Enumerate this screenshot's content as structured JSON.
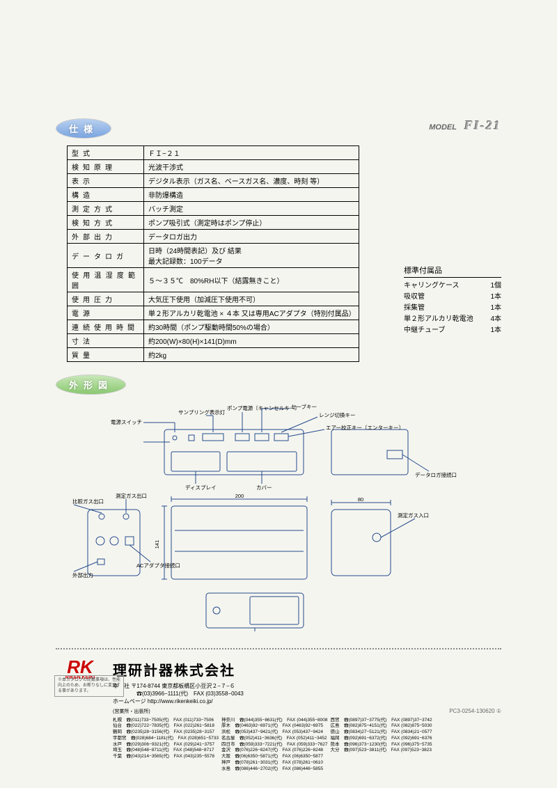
{
  "badges": {
    "spec": "仕様",
    "outline": "外形図"
  },
  "model": {
    "label": "MODEL",
    "value": "FI-21"
  },
  "spec_rows": [
    {
      "label": "型式",
      "value": "ＦＩ−２１"
    },
    {
      "label": "検知原理",
      "value": "光波干渉式"
    },
    {
      "label": "表示",
      "value": "デジタル表示（ガス名、ベースガス名、濃度、時刻 等）"
    },
    {
      "label": "構造",
      "value": "非防爆構造"
    },
    {
      "label": "測定方式",
      "value": "バッチ測定"
    },
    {
      "label": "検知方式",
      "value": "ポンプ吸引式（測定時はポンプ停止）"
    },
    {
      "label": "外部出力",
      "value": "データロガ出力"
    },
    {
      "label": "データロガ",
      "value": "日時（24時間表記）及び 結果\n最大記録数：100データ"
    },
    {
      "label": "使用温湿度範囲",
      "value": "５〜３５℃　80%RH以下（結露無きこと）"
    },
    {
      "label": "使用圧力",
      "value": "大気圧下使用（加減圧下使用不可）"
    },
    {
      "label": "電源",
      "value": "単２形アルカリ乾電池 × ４本 又は専用ACアダプタ（特別付属品）"
    },
    {
      "label": "連続使用時間",
      "value": "約30時間（ポンプ駆動時間50%の場合）"
    },
    {
      "label": "寸法",
      "value": "約200(W)×80(H)×141(D)mm"
    },
    {
      "label": "質量",
      "value": "約2kg"
    }
  ],
  "accessories": {
    "title": "標準付属品",
    "items": [
      {
        "name": "キャリングケース",
        "qty": "1個"
      },
      {
        "name": "吸収管",
        "qty": "1本"
      },
      {
        "name": "採集管",
        "qty": "1本"
      },
      {
        "name": "単２形アルカリ乾電池",
        "qty": "4本"
      },
      {
        "name": "中継チューブ",
        "qty": "1本"
      }
    ]
  },
  "diagram_labels": {
    "pump_power": "ポンプ電源〔キャンセルキー〕",
    "sampling_led": "サンプリング表示灯",
    "power_sw": "電源スイッチ",
    "save_key": "セーブキー",
    "range_key": "レンジ切換キー",
    "air_key": "エアー校正キー〔エンターキー〕",
    "display": "ディスプレイ",
    "cover": "カバー",
    "datalog_port": "データロガ接続口",
    "ref_gas_out": "比較ガス出口",
    "meas_gas_out": "測定ガス出口",
    "ext_out": "外部出力",
    "ac_port": "ACアダプタ接続口",
    "meas_gas_in": "測定ガス入口",
    "batt_cover": "電池カバー",
    "dim_w": "200",
    "dim_h": "141",
    "dim_d": "80"
  },
  "footer": {
    "logo_mark": "RK",
    "logo_sub": "RIKEN KEIKI",
    "company": "理研計器株式会社",
    "hq_label": "本　社",
    "hq_addr": "〒174-8744 東京都板橋区小豆沢２−７−６",
    "hq_tel": "☎(03)3966−1111(代)　FAX (03)3558−0043",
    "homepage_label": "ホームページ",
    "homepage": "http://www.rikenkeiki.co.jp/",
    "sales_label": "(営業所・出張所)",
    "note": "※本カタログの記載事項は、性能向上のため、お断りなしに変更する事があります。",
    "doc_code": "PC3-0254-130620 ①"
  },
  "offices_left": [
    {
      "c": "札幌",
      "t": "☎(011)733−7505(代)",
      "f": "FAX (011)733−7506"
    },
    {
      "c": "仙台",
      "t": "☎(022)722−7835(代)",
      "f": "FAX (022)261−5818"
    },
    {
      "c": "鶴岡",
      "t": "☎(0235)28−3156(代)",
      "f": "FAX (0235)28−3157"
    },
    {
      "c": "宇都宮",
      "t": "☎(028)684−1181(代)",
      "f": "FAX (028)651−5733"
    },
    {
      "c": "水戸",
      "t": "☎(029)306−9321(代)",
      "f": "FAX (029)241−3757"
    },
    {
      "c": "埼玉",
      "t": "☎(048)548−8711(代)",
      "f": "FAX (048)548−8717"
    },
    {
      "c": "千葉",
      "t": "☎(043)214−3565(代)",
      "f": "FAX (043)235−5578"
    }
  ],
  "offices_mid": [
    {
      "c": "神奈川",
      "t": "☎(044)355−8631(代)",
      "f": "FAX (044)355−8008"
    },
    {
      "c": "厚木",
      "t": "☎(0463)92−6971(代)",
      "f": "FAX (0463)92−6975"
    },
    {
      "c": "浜松",
      "t": "☎(053)437−9421(代)",
      "f": "FAX (053)437−9424"
    },
    {
      "c": "名古屋",
      "t": "☎(052)411−3636(代)",
      "f": "FAX (052)411−3452"
    },
    {
      "c": "四日市",
      "t": "☎(059)333−7221(代)",
      "f": "FAX (059)333−7627"
    },
    {
      "c": "金沢",
      "t": "☎(076)226−8247(代)",
      "f": "FAX (076)226−8248"
    },
    {
      "c": "大阪",
      "t": "☎(06)6350−5871(代)",
      "f": "FAX (06)6350−5877"
    },
    {
      "c": "神戸",
      "t": "☎(078)261−3031(代)",
      "f": "FAX (078)261−0610"
    },
    {
      "c": "水島",
      "t": "☎(086)446−2702(代)",
      "f": "FAX (086)446−5855"
    }
  ],
  "offices_right": [
    {
      "c": "西宮",
      "t": "☎(0897)37−3775(代)",
      "f": "FAX (0897)37−3742"
    },
    {
      "c": "広島",
      "t": "☎(082)875−4151(代)",
      "f": "FAX (082)875−5030"
    },
    {
      "c": "徳山",
      "t": "☎(0834)27−5121(代)",
      "f": "FAX (0834)21−0577"
    },
    {
      "c": "福岡",
      "t": "☎(092)691−6372(代)",
      "f": "FAX (092)691−6376"
    },
    {
      "c": "熊本",
      "t": "☎(096)373−1230(代)",
      "f": "FAX (096)375−5735"
    },
    {
      "c": "大分",
      "t": "☎(097)523−3811(代)",
      "f": "FAX (097)523−3823"
    }
  ]
}
